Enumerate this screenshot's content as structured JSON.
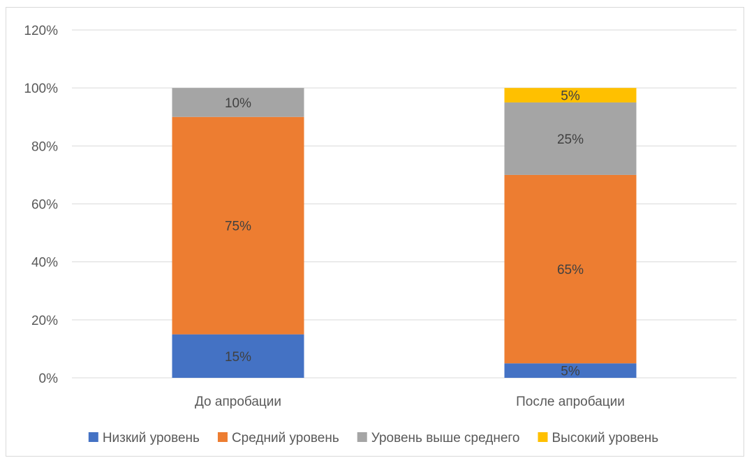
{
  "chart_data": {
    "type": "bar",
    "stacked": true,
    "categories": [
      "До апробации",
      "После апробации"
    ],
    "series": [
      {
        "name": "Низкий уровень",
        "values": [
          15,
          5
        ],
        "labels": [
          "15%",
          "5%"
        ],
        "color": "#4472c4"
      },
      {
        "name": "Средний уровень",
        "values": [
          75,
          65
        ],
        "labels": [
          "75%",
          "65%"
        ],
        "color": "#ed7d31"
      },
      {
        "name": "Уровень выше среднего",
        "values": [
          10,
          25
        ],
        "labels": [
          "10%",
          "25%"
        ],
        "color": "#a5a5a5"
      },
      {
        "name": "Высокий уровень",
        "values": [
          0,
          5
        ],
        "labels": [
          "",
          "5%"
        ],
        "color": "#ffc000"
      }
    ],
    "ylim": [
      0,
      120
    ],
    "yticks": [
      0,
      20,
      40,
      60,
      80,
      100,
      120
    ],
    "ytick_labels": [
      "0%",
      "20%",
      "40%",
      "60%",
      "80%",
      "100%",
      "120%"
    ],
    "grid": true,
    "legend_position": "bottom",
    "title": "",
    "xlabel": "",
    "ylabel": ""
  }
}
